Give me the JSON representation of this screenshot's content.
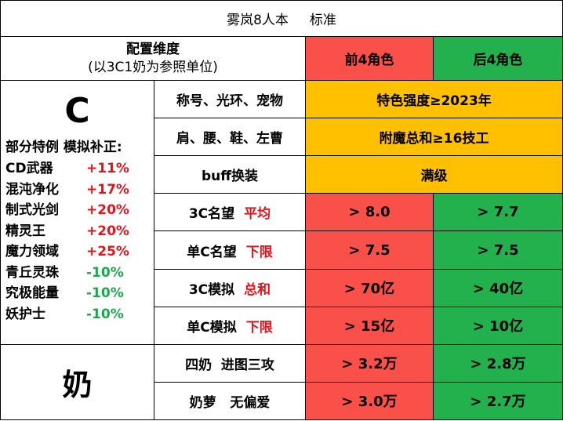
{
  "title": "雾岚8人本     标准",
  "header": {
    "dimension_line1": "配置维度",
    "dimension_line2": "(以3C1奶为参照单位)",
    "front4": "前4角色",
    "back4": "后4角色"
  },
  "c_section": {
    "label": "C",
    "special_title": "部分特例 模拟补正:",
    "specials": [
      {
        "name": "CD武器",
        "value": "+11%"
      },
      {
        "name": "混沌净化",
        "value": "+17%"
      },
      {
        "name": "制式光剑",
        "value": "+20%"
      },
      {
        "name": "精灵王",
        "value": "+20%"
      },
      {
        "name": "魔力领域",
        "value": "+25%"
      },
      {
        "name": "青丘灵珠",
        "value": "-10%"
      },
      {
        "name": "究极能量",
        "value": "-10%"
      },
      {
        "name": "妖护士",
        "value": "-10%"
      }
    ]
  },
  "rows": [
    {
      "label": "称号、光环、宠物",
      "merged": "特色强度≥2023年"
    },
    {
      "label": "肩、腰、鞋、左曹",
      "merged": "附魔总和≥16技工"
    },
    {
      "label": "buff换装",
      "merged": "满级"
    },
    {
      "label": "3C名望",
      "keyword": "平均",
      "front": "> 8.0",
      "back": "> 7.7"
    },
    {
      "label": "单C名望",
      "keyword": "下限",
      "front": "> 7.5",
      "back": "> 7.5"
    },
    {
      "label": "3C模拟",
      "keyword": "总和",
      "front": "> 70亿",
      "back": "> 40亿"
    },
    {
      "label": "单C模拟",
      "keyword": "下限",
      "front": "> 15亿",
      "back": "> 10亿"
    }
  ],
  "nai_section": {
    "label": "奶",
    "rows": [
      {
        "label": "四奶  进图三攻",
        "front": "> 3.2万",
        "back": "> 2.8万"
      },
      {
        "label": "奶萝   无偏爱",
        "front": "> 3.0万",
        "back": "> 2.7万"
      }
    ]
  },
  "colors": {
    "red": "#f9504a",
    "green": "#22b14c",
    "orange": "#ffc000",
    "text_red": "#e5141a",
    "text_green": "#1aa84a"
  }
}
